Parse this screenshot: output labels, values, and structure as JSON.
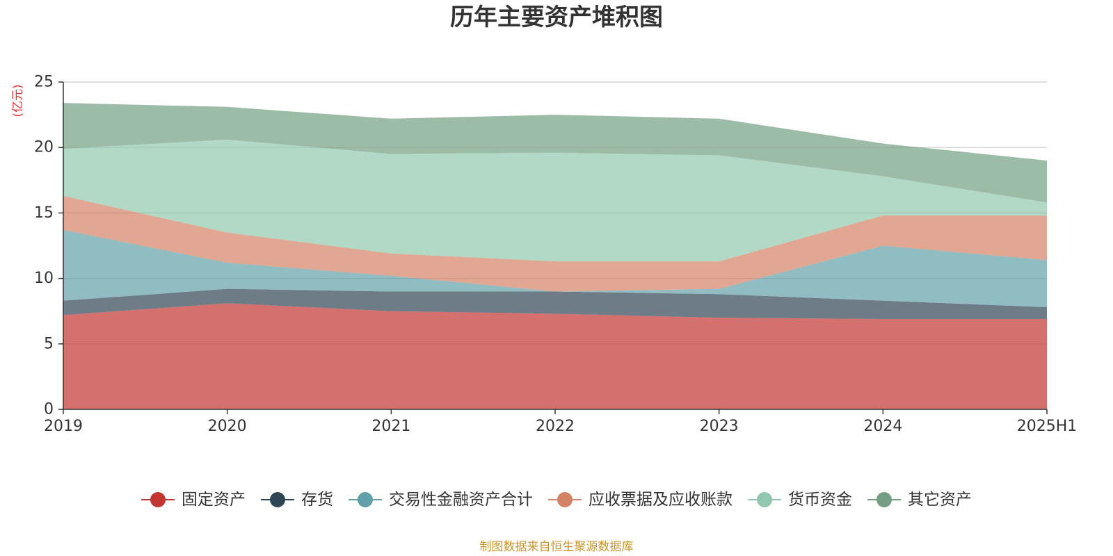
{
  "chart_data": {
    "type": "area",
    "stacked": true,
    "title": "历年主要资产堆积图",
    "ylabel": "(亿元)",
    "xlabel": "",
    "categories": [
      "2019",
      "2020",
      "2021",
      "2022",
      "2023",
      "2024",
      "2025H1"
    ],
    "ylim": [
      0,
      25
    ],
    "yticks": [
      0,
      5,
      10,
      15,
      20,
      25
    ],
    "grid": true,
    "legend_position": "bottom",
    "series": [
      {
        "name": "固定资产",
        "color": "#c23531",
        "values": [
          7.2,
          8.1,
          7.5,
          7.3,
          7.0,
          6.9,
          6.9
        ]
      },
      {
        "name": "存货",
        "color": "#2f4554",
        "values": [
          1.1,
          1.1,
          1.5,
          1.7,
          1.8,
          1.4,
          0.9
        ]
      },
      {
        "name": "交易性金融资产合计",
        "color": "#61a0a8",
        "values": [
          5.4,
          2.0,
          1.2,
          0.0,
          0.4,
          4.2,
          3.6
        ]
      },
      {
        "name": "应收票据及应收账款",
        "color": "#d48265",
        "values": [
          2.6,
          2.3,
          1.7,
          2.3,
          2.1,
          2.3,
          3.4
        ]
      },
      {
        "name": "货币资金",
        "color": "#91c7ae",
        "values": [
          3.6,
          7.1,
          7.6,
          8.3,
          8.1,
          3.0,
          1.0
        ]
      },
      {
        "name": "其它资产",
        "color": "#749f83",
        "values": [
          3.5,
          2.5,
          2.7,
          2.9,
          2.8,
          2.5,
          3.2
        ]
      }
    ],
    "source_note": "制图数据来自恒生聚源数据库"
  }
}
